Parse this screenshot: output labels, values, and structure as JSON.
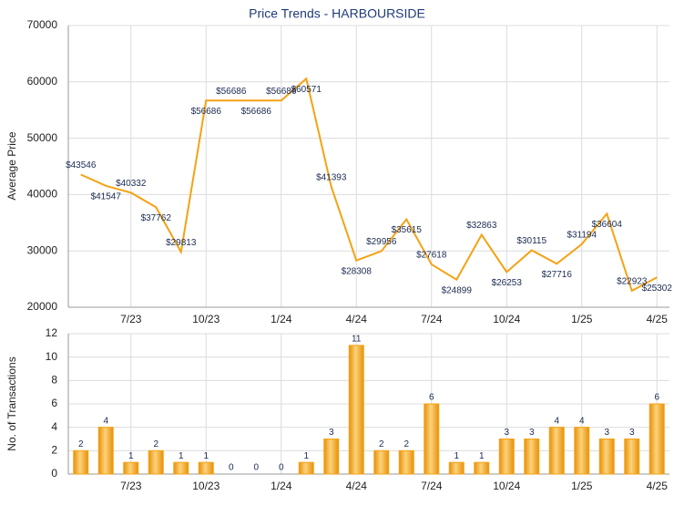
{
  "chart_data": [
    {
      "type": "line",
      "title": "Price Trends - HARBOURSIDE",
      "y_label": "Average Price",
      "categories": [
        null,
        null,
        "7/23",
        null,
        null,
        "10/23",
        null,
        null,
        "1/24",
        null,
        null,
        "4/24",
        null,
        null,
        "7/24",
        null,
        null,
        "10/24",
        null,
        null,
        "1/25",
        null,
        null,
        "4/25"
      ],
      "values": [
        43546,
        41547,
        40332,
        37762,
        29813,
        56686,
        56686,
        56686,
        56686,
        60571,
        41393,
        28308,
        29956,
        35615,
        27618,
        24899,
        32863,
        26253,
        30115,
        27716,
        31194,
        36604,
        22923,
        25302
      ],
      "value_labels": [
        "$43546",
        "$41547",
        "$40332",
        "$37762",
        "$29813",
        "$56686",
        "$56686",
        "$56686",
        "$56686",
        "$60571",
        "$41393",
        "$28308",
        "$29956",
        "$35615",
        "$27618",
        "$24899",
        "$32863",
        "$26253",
        "$30115",
        "$27716",
        "$31194",
        "$36604",
        "$22923",
        "$25302"
      ],
      "color": "#f5a214",
      "ylim": [
        20000,
        70000
      ],
      "yticks": [
        20000,
        30000,
        40000,
        50000,
        60000,
        70000
      ],
      "grid": true
    },
    {
      "type": "bar",
      "y_label": "No. of Transactions",
      "categories": [
        null,
        null,
        "7/23",
        null,
        null,
        "10/23",
        null,
        null,
        "1/24",
        null,
        null,
        "4/24",
        null,
        null,
        "7/24",
        null,
        null,
        "10/24",
        null,
        null,
        "1/25",
        null,
        null,
        "4/25"
      ],
      "values": [
        2,
        4,
        1,
        2,
        1,
        1,
        0,
        0,
        0,
        1,
        3,
        11,
        2,
        2,
        6,
        1,
        1,
        3,
        3,
        4,
        4,
        3,
        3,
        6
      ],
      "color": "#f5a214",
      "ylim": [
        0,
        12
      ],
      "yticks": [
        0,
        2,
        4,
        6,
        8,
        10,
        12
      ],
      "grid": true
    }
  ]
}
